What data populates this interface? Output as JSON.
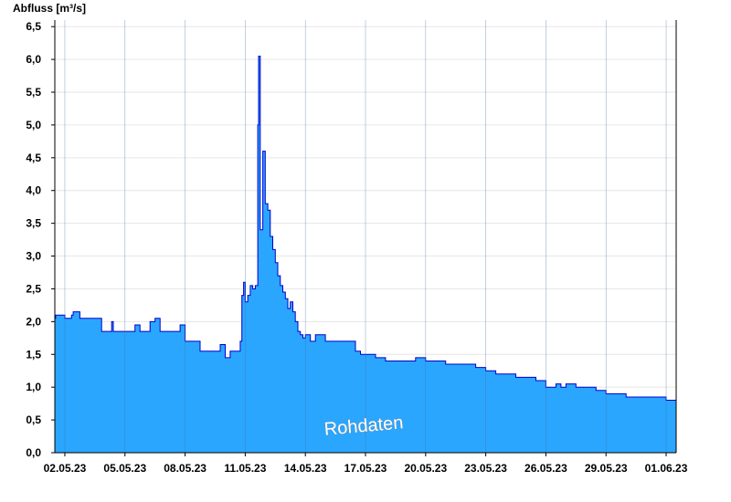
{
  "chart_data": {
    "type": "area",
    "title": "",
    "ylabel": "Abfluss [m³/s]",
    "xlabel": "",
    "watermark": "Rohdaten",
    "ylim": [
      0,
      6.6
    ],
    "xlim": [
      "2023-05-01 12:00",
      "2023-06-01 12:00"
    ],
    "y_ticks": [
      "0,0",
      "0,5",
      "1,0",
      "1,5",
      "2,0",
      "2,5",
      "3,0",
      "3,5",
      "4,0",
      "4,5",
      "5,0",
      "5,5",
      "6,0",
      "6,5"
    ],
    "y_tick_values": [
      0,
      0.5,
      1,
      1.5,
      2,
      2.5,
      3,
      3.5,
      4,
      4.5,
      5,
      5.5,
      6,
      6.5
    ],
    "x_ticks": [
      "02.05.23",
      "05.05.23",
      "08.05.23",
      "11.05.23",
      "14.05.23",
      "17.05.23",
      "20.05.23",
      "23.05.23",
      "26.05.23",
      "29.05.23",
      "01.06.23"
    ],
    "x_tick_values": [
      "2023-05-02",
      "2023-05-05",
      "2023-05-08",
      "2023-05-11",
      "2023-05-14",
      "2023-05-17",
      "2023-05-20",
      "2023-05-23",
      "2023-05-26",
      "2023-05-29",
      "2023-06-01"
    ],
    "grid": true,
    "fill_color": "#2aa6ff",
    "line_color": "#0000cc",
    "series": [
      {
        "x": [
          "2023-05-01 12:00",
          "2023-05-01 13:00",
          "2023-05-02 00:00",
          "2023-05-02 08:00",
          "2023-05-02 10:00",
          "2023-05-02 18:00",
          "2023-05-03 06:00",
          "2023-05-03 12:00",
          "2023-05-03 20:00",
          "2023-05-04 00:00",
          "2023-05-04 08:00",
          "2023-05-04 10:00",
          "2023-05-04 18:00",
          "2023-05-05 06:00",
          "2023-05-05 12:00",
          "2023-05-05 18:00",
          "2023-05-06 00:00",
          "2023-05-06 06:00",
          "2023-05-06 12:00",
          "2023-05-06 18:00",
          "2023-05-07 00:00",
          "2023-05-07 06:00",
          "2023-05-07 12:00",
          "2023-05-07 18:00",
          "2023-05-08 00:00",
          "2023-05-08 06:00",
          "2023-05-08 12:00",
          "2023-05-08 18:00",
          "2023-05-09 00:00",
          "2023-05-09 12:00",
          "2023-05-09 18:00",
          "2023-05-10 00:00",
          "2023-05-10 06:00",
          "2023-05-10 12:00",
          "2023-05-10 18:00",
          "2023-05-10 20:00",
          "2023-05-10 22:00",
          "2023-05-11 00:00",
          "2023-05-11 03:00",
          "2023-05-11 06:00",
          "2023-05-11 09:00",
          "2023-05-11 12:00",
          "2023-05-11 15:00",
          "2023-05-11 16:00",
          "2023-05-11 18:00",
          "2023-05-11 21:00",
          "2023-05-12 00:00",
          "2023-05-12 03:00",
          "2023-05-12 06:00",
          "2023-05-12 09:00",
          "2023-05-12 12:00",
          "2023-05-12 15:00",
          "2023-05-12 18:00",
          "2023-05-12 21:00",
          "2023-05-13 00:00",
          "2023-05-13 03:00",
          "2023-05-13 06:00",
          "2023-05-13 09:00",
          "2023-05-13 12:00",
          "2023-05-13 15:00",
          "2023-05-13 18:00",
          "2023-05-13 21:00",
          "2023-05-14 00:00",
          "2023-05-14 06:00",
          "2023-05-14 12:00",
          "2023-05-15 00:00",
          "2023-05-15 12:00",
          "2023-05-16 00:00",
          "2023-05-16 12:00",
          "2023-05-16 18:00",
          "2023-05-17 00:00",
          "2023-05-17 06:00",
          "2023-05-17 12:00",
          "2023-05-18 00:00",
          "2023-05-18 12:00",
          "2023-05-19 00:00",
          "2023-05-19 12:00",
          "2023-05-20 00:00",
          "2023-05-20 12:00",
          "2023-05-21 00:00",
          "2023-05-21 12:00",
          "2023-05-22 00:00",
          "2023-05-22 12:00",
          "2023-05-23 00:00",
          "2023-05-23 12:00",
          "2023-05-24 00:00",
          "2023-05-24 12:00",
          "2023-05-25 00:00",
          "2023-05-25 12:00",
          "2023-05-26 00:00",
          "2023-05-26 06:00",
          "2023-05-26 12:00",
          "2023-05-26 18:00",
          "2023-05-27 00:00",
          "2023-05-27 12:00",
          "2023-05-28 00:00",
          "2023-05-28 12:00",
          "2023-05-29 00:00",
          "2023-05-29 12:00",
          "2023-05-30 00:00",
          "2023-05-30 12:00",
          "2023-05-31 00:00",
          "2023-05-31 12:00",
          "2023-06-01 00:00",
          "2023-06-01 12:00"
        ],
        "values": [
          2.05,
          2.1,
          2.05,
          2.1,
          2.15,
          2.05,
          2.05,
          2.05,
          1.85,
          1.85,
          2.0,
          1.85,
          1.85,
          1.85,
          1.95,
          1.85,
          1.85,
          2.0,
          2.05,
          1.85,
          1.85,
          1.85,
          1.85,
          1.95,
          1.7,
          1.7,
          1.7,
          1.55,
          1.55,
          1.55,
          1.65,
          1.45,
          1.55,
          1.55,
          1.7,
          2.4,
          2.6,
          2.3,
          2.4,
          2.55,
          2.5,
          2.55,
          5.0,
          6.05,
          3.4,
          4.6,
          3.8,
          3.7,
          3.3,
          3.1,
          2.9,
          2.7,
          2.55,
          2.45,
          2.35,
          2.2,
          2.3,
          2.15,
          2.0,
          1.85,
          1.8,
          1.75,
          1.8,
          1.7,
          1.8,
          1.7,
          1.7,
          1.7,
          1.55,
          1.5,
          1.5,
          1.5,
          1.45,
          1.4,
          1.4,
          1.4,
          1.45,
          1.4,
          1.4,
          1.35,
          1.35,
          1.35,
          1.3,
          1.25,
          1.2,
          1.2,
          1.15,
          1.15,
          1.1,
          1.0,
          1.0,
          1.05,
          1.0,
          1.05,
          1.0,
          1.0,
          0.95,
          0.9,
          0.9,
          0.85,
          0.85,
          0.85,
          0.85,
          0.8,
          0.85
        ]
      }
    ]
  }
}
